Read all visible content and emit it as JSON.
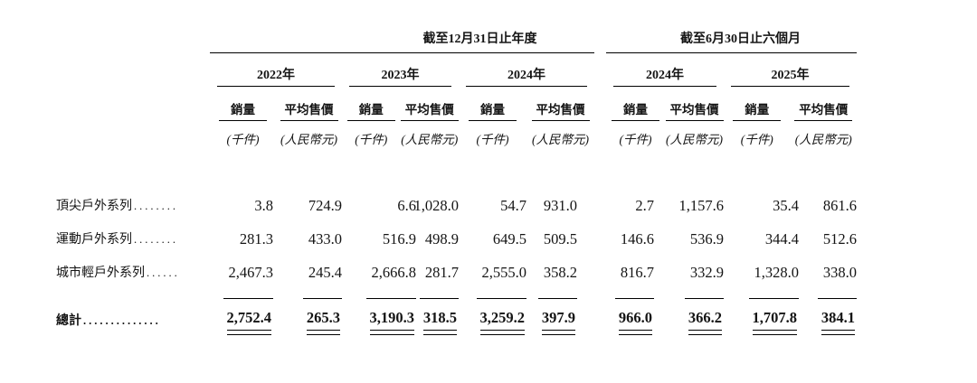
{
  "page": {
    "background": "#ffffff",
    "text_color": "#141414",
    "rule_color": "#000000"
  },
  "table": {
    "sections": [
      {
        "title": "截至12月31日止年度"
      },
      {
        "title": "截至6月30日止六個月"
      }
    ],
    "years": [
      "2022年",
      "2023年",
      "2024年",
      "2024年",
      "2025年"
    ],
    "headers": {
      "volume": "銷量",
      "price": "平均售價"
    },
    "units": {
      "volume": "(千件)",
      "price": "(人民幣元)"
    },
    "rows": [
      {
        "label": "頂尖戶外系列",
        "leader": "........",
        "values": [
          "3.8",
          "724.9",
          "6.6",
          "1,028.0",
          "54.7",
          "931.0",
          "2.7",
          "1,157.6",
          "35.4",
          "861.6"
        ]
      },
      {
        "label": "運動戶外系列",
        "leader": "........",
        "values": [
          "281.3",
          "433.0",
          "516.9",
          "498.9",
          "649.5",
          "509.5",
          "146.6",
          "536.9",
          "344.4",
          "512.6"
        ]
      },
      {
        "label": "城市輕戶外系列",
        "leader": "......",
        "values": [
          "2,467.3",
          "245.4",
          "2,666.8",
          "281.7",
          "2,555.0",
          "358.2",
          "816.7",
          "332.9",
          "1,328.0",
          "338.0"
        ]
      }
    ],
    "total_row": {
      "label": "總計",
      "leader": "..............",
      "values": [
        "2,752.4",
        "265.3",
        "3,190.3",
        "318.5",
        "3,259.2",
        "397.9",
        "966.0",
        "366.2",
        "1,707.8",
        "384.1"
      ]
    }
  }
}
